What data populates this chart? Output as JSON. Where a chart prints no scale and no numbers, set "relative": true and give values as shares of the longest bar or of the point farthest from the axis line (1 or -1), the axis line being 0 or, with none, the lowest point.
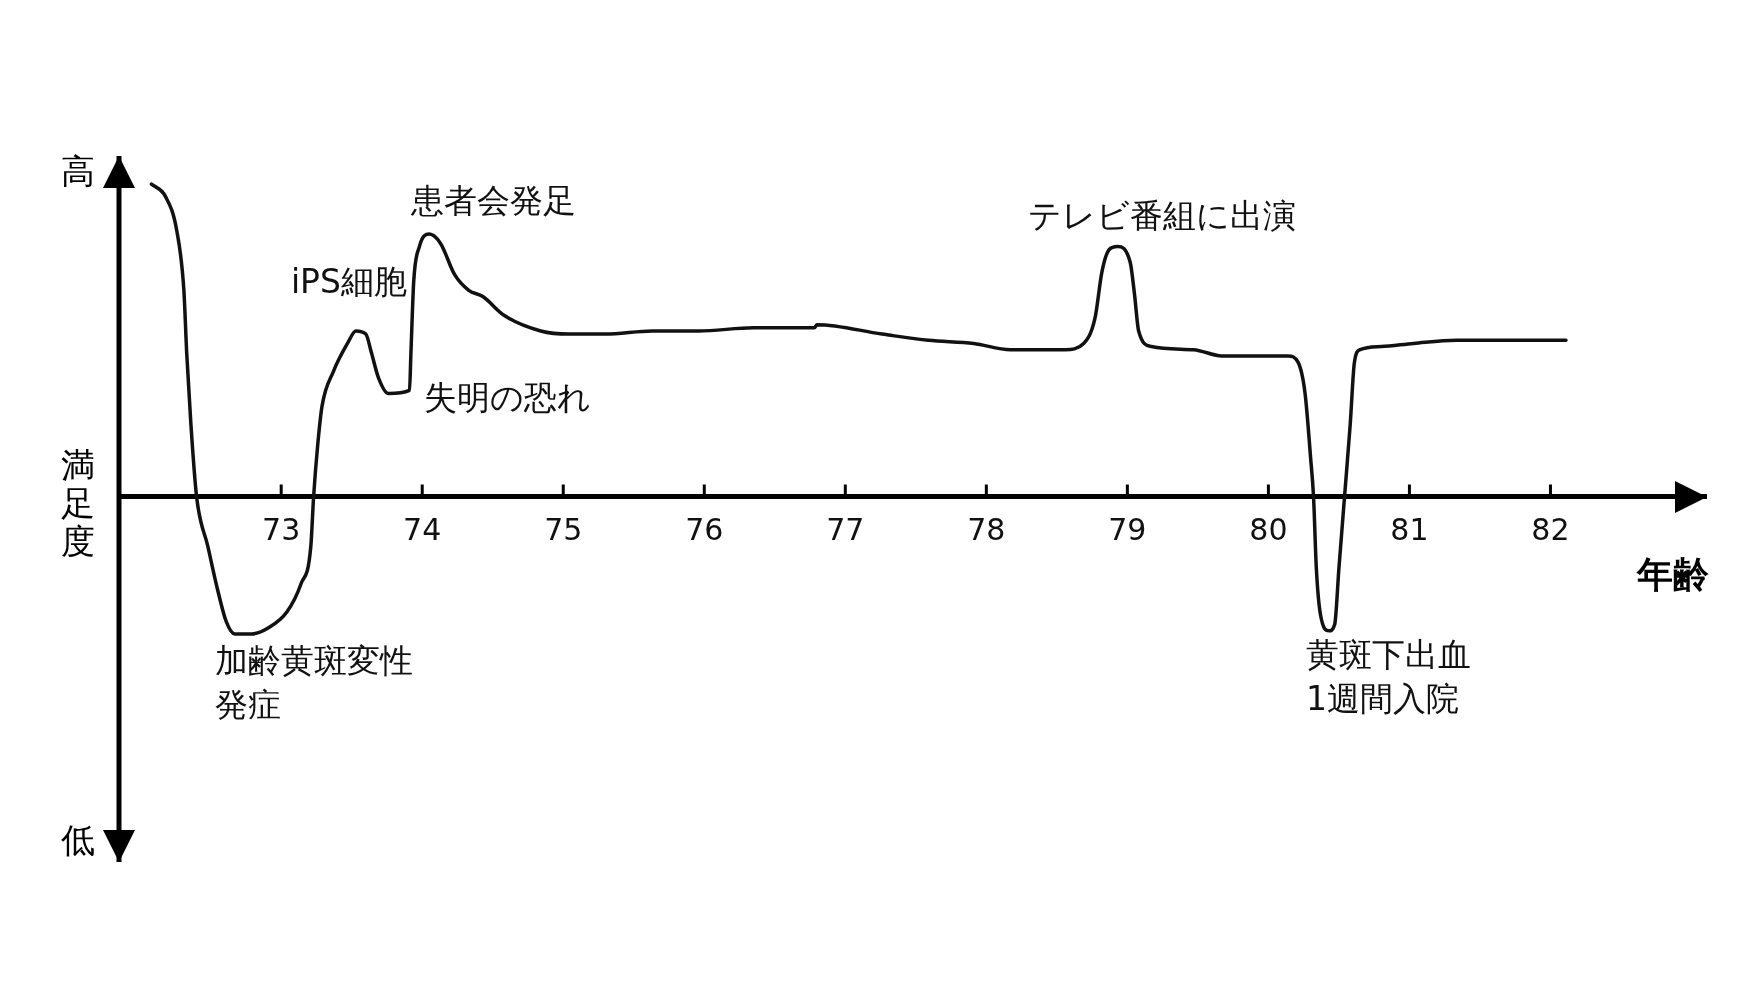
{
  "chart_data": {
    "type": "line",
    "relative": true,
    "xlabel": "年齢",
    "ylabel": "満足度",
    "xlim": [
      71.85,
      83.11
    ],
    "xticks": [
      73,
      74,
      75,
      76,
      77,
      78,
      79,
      80,
      81,
      82
    ],
    "color": "#111111",
    "marker": "none",
    "x": [
      72.08,
      72.18,
      72.26,
      72.31,
      72.33,
      72.36,
      72.4,
      72.48,
      72.55,
      72.61,
      72.67,
      72.79,
      72.91,
      73.04,
      73.14,
      73.21,
      73.23,
      73.26,
      73.29,
      73.37,
      73.47,
      73.53,
      73.6,
      73.64,
      73.69,
      73.76,
      73.91,
      73.92,
      73.94,
      73.98,
      74.05,
      74.13,
      74.23,
      74.33,
      74.43,
      74.58,
      74.84,
      75.04,
      75.3,
      75.63,
      75.96,
      76.35,
      76.78,
      76.8,
      77.26,
      77.59,
      77.91,
      78.17,
      78.56,
      78.69,
      78.77,
      78.82,
      78.87,
      78.93,
      79.02,
      79.05,
      79.08,
      79.17,
      79.47,
      79.67,
      79.77,
      80.14,
      80.21,
      80.26,
      80.3,
      80.32,
      80.34,
      80.37,
      80.43,
      80.47,
      80.5,
      80.54,
      80.58,
      80.61,
      80.65,
      80.8,
      81.03,
      81.33,
      81.79,
      82.11
    ],
    "values": [
      1.0,
      0.96,
      0.85,
      0.66,
      0.46,
      0.23,
      0,
      -0.16,
      -0.3,
      -0.4,
      -0.44,
      -0.44,
      -0.42,
      -0.37,
      -0.28,
      -0.16,
      0,
      0.17,
      0.29,
      0.4,
      0.49,
      0.53,
      0.52,
      0.46,
      0.38,
      0.33,
      0.34,
      0.46,
      0.69,
      0.8,
      0.84,
      0.81,
      0.71,
      0.66,
      0.64,
      0.58,
      0.53,
      0.52,
      0.52,
      0.53,
      0.53,
      0.54,
      0.54,
      0.55,
      0.52,
      0.5,
      0.49,
      0.47,
      0.47,
      0.49,
      0.57,
      0.72,
      0.79,
      0.8,
      0.75,
      0.65,
      0.53,
      0.48,
      0.47,
      0.45,
      0.45,
      0.45,
      0.43,
      0.33,
      0.12,
      0,
      -0.23,
      -0.38,
      -0.43,
      -0.41,
      -0.23,
      0,
      0.23,
      0.43,
      0.47,
      0.48,
      0.49,
      0.5,
      0.5,
      0.5
    ],
    "annotations": [
      "高",
      "低",
      {
        "text": "加齢黄斑変性発症",
        "x": 72.73,
        "y": -0.44
      },
      {
        "text": "iPS細胞",
        "x": 73.53,
        "y": 0.53
      },
      {
        "text": "患者会発足",
        "x": 74.05,
        "y": 0.84
      },
      {
        "text": "失明の恐れ",
        "x": 73.91,
        "y": 0.34
      },
      {
        "text": "テレビ番組に出演",
        "x": 78.93,
        "y": 0.8
      },
      {
        "text": "黄斑下出血1週間入院",
        "x": 80.43,
        "y": -0.43
      }
    ]
  }
}
